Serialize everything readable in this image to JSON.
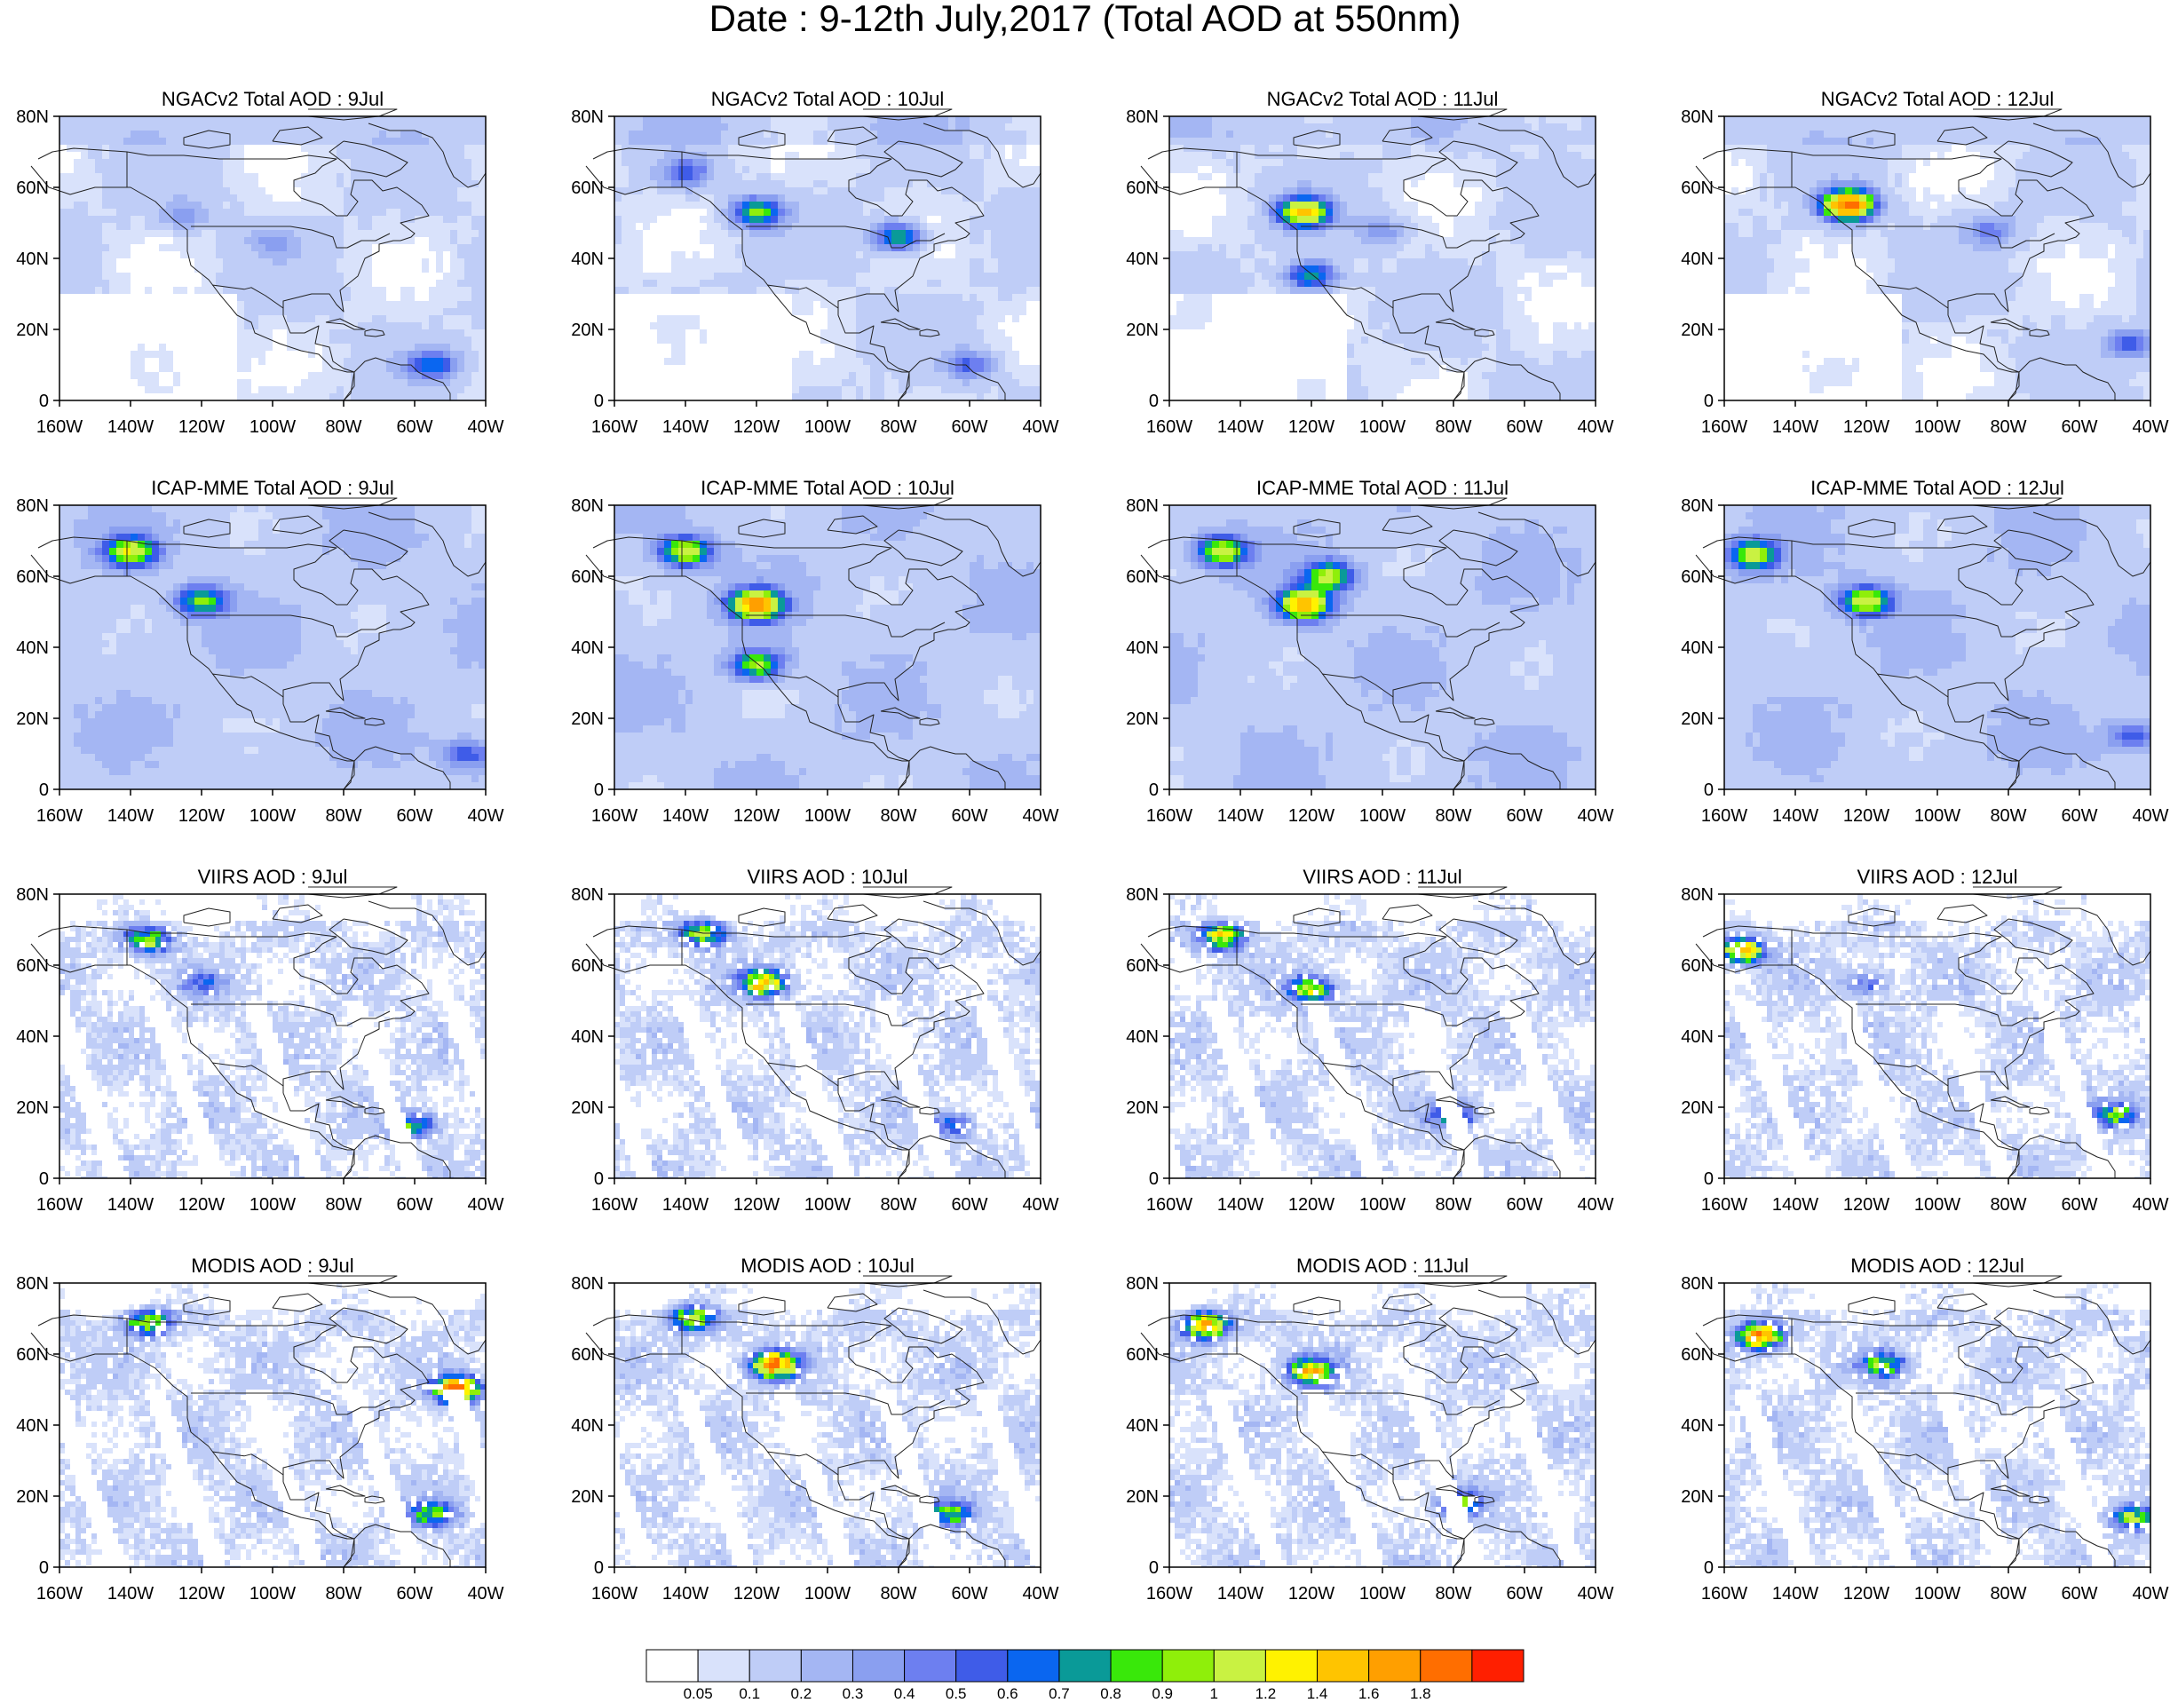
{
  "title": "Date : 9-12th July,2017 (Total AOD at 550nm)",
  "chart_data": {
    "type": "heatmap",
    "variable": "Total AOD at 550nm",
    "region": {
      "lon": [
        -160,
        -40
      ],
      "lat": [
        0,
        80
      ]
    },
    "x_ticks": [
      "160W",
      "140W",
      "120W",
      "100W",
      "80W",
      "60W",
      "40W"
    ],
    "y_ticks": [
      "0",
      "20N",
      "40N",
      "60N",
      "80N"
    ],
    "panels": [
      {
        "title": "NGACv2 Total AOD : 9Jul",
        "source": "NGACv2",
        "day": "9Jul",
        "plumes": [
          {
            "lon": -55,
            "lat": 10,
            "aod": 0.55
          },
          {
            "lon": -125,
            "lat": 52,
            "aod": 0.25
          },
          {
            "lon": -100,
            "lat": 45,
            "aod": 0.2
          }
        ]
      },
      {
        "title": "NGACv2 Total AOD : 10Jul",
        "source": "NGACv2",
        "day": "10Jul",
        "plumes": [
          {
            "lon": -120,
            "lat": 53,
            "aod": 0.8
          },
          {
            "lon": -80,
            "lat": 46,
            "aod": 0.75
          },
          {
            "lon": -140,
            "lat": 64,
            "aod": 0.45
          },
          {
            "lon": -60,
            "lat": 10,
            "aod": 0.4
          }
        ]
      },
      {
        "title": "NGACv2 Total AOD : 11Jul",
        "source": "NGACv2",
        "day": "11Jul",
        "plumes": [
          {
            "lon": -122,
            "lat": 53,
            "aod": 1.3
          },
          {
            "lon": -120,
            "lat": 35,
            "aod": 0.75
          },
          {
            "lon": -100,
            "lat": 48,
            "aod": 0.3
          }
        ]
      },
      {
        "title": "NGACv2 Total AOD : 12Jul",
        "source": "NGACv2",
        "day": "12Jul",
        "plumes": [
          {
            "lon": -125,
            "lat": 55,
            "aod": 1.8
          },
          {
            "lon": -45,
            "lat": 16,
            "aod": 0.45
          },
          {
            "lon": -85,
            "lat": 48,
            "aod": 0.35
          }
        ]
      },
      {
        "title": "ICAP-MME Total AOD : 9Jul",
        "source": "ICAP-MME",
        "day": "9Jul",
        "plumes": [
          {
            "lon": -140,
            "lat": 67,
            "aod": 1.0
          },
          {
            "lon": -120,
            "lat": 53,
            "aod": 0.75
          },
          {
            "lon": -45,
            "lat": 10,
            "aod": 0.45
          }
        ]
      },
      {
        "title": "ICAP-MME Total AOD : 10Jul",
        "source": "ICAP-MME",
        "day": "10Jul",
        "plumes": [
          {
            "lon": -140,
            "lat": 67,
            "aod": 1.0
          },
          {
            "lon": -120,
            "lat": 52,
            "aod": 1.5
          },
          {
            "lon": -120,
            "lat": 35,
            "aod": 0.9
          }
        ]
      },
      {
        "title": "ICAP-MME Total AOD : 11Jul",
        "source": "ICAP-MME",
        "day": "11Jul",
        "plumes": [
          {
            "lon": -145,
            "lat": 67,
            "aod": 1.0
          },
          {
            "lon": -122,
            "lat": 52,
            "aod": 1.4
          },
          {
            "lon": -115,
            "lat": 60,
            "aod": 0.9
          }
        ]
      },
      {
        "title": "ICAP-MME Total AOD : 12Jul",
        "source": "ICAP-MME",
        "day": "12Jul",
        "plumes": [
          {
            "lon": -152,
            "lat": 66,
            "aod": 0.9
          },
          {
            "lon": -120,
            "lat": 53,
            "aod": 1.0
          },
          {
            "lon": -45,
            "lat": 15,
            "aod": 0.45
          }
        ]
      },
      {
        "title": "VIIRS AOD : 9Jul",
        "source": "VIIRS",
        "day": "9Jul",
        "plumes": [
          {
            "lon": -135,
            "lat": 67,
            "aod": 0.9
          },
          {
            "lon": -60,
            "lat": 15,
            "aod": 0.7
          },
          {
            "lon": -120,
            "lat": 55,
            "aod": 0.4
          }
        ]
      },
      {
        "title": "VIIRS AOD : 10Jul",
        "source": "VIIRS",
        "day": "10Jul",
        "plumes": [
          {
            "lon": -135,
            "lat": 69,
            "aod": 1.0
          },
          {
            "lon": -118,
            "lat": 55,
            "aod": 1.3
          },
          {
            "lon": -65,
            "lat": 15,
            "aod": 0.5
          }
        ]
      },
      {
        "title": "VIIRS AOD : 11Jul",
        "source": "VIIRS",
        "day": "11Jul",
        "plumes": [
          {
            "lon": -145,
            "lat": 68,
            "aod": 1.1
          },
          {
            "lon": -120,
            "lat": 53,
            "aod": 1.0
          },
          {
            "lon": -80,
            "lat": 18,
            "aod": 0.7
          }
        ]
      },
      {
        "title": "VIIRS AOD : 12Jul",
        "source": "VIIRS",
        "day": "12Jul",
        "plumes": [
          {
            "lon": -155,
            "lat": 64,
            "aod": 1.3
          },
          {
            "lon": -50,
            "lat": 18,
            "aod": 0.7
          },
          {
            "lon": -120,
            "lat": 55,
            "aod": 0.4
          }
        ]
      },
      {
        "title": "MODIS AOD : 9Jul",
        "source": "MODIS",
        "day": "9Jul",
        "plumes": [
          {
            "lon": -135,
            "lat": 69,
            "aod": 1.0
          },
          {
            "lon": -48,
            "lat": 50,
            "aod": 1.8
          },
          {
            "lon": -55,
            "lat": 15,
            "aod": 0.8
          }
        ]
      },
      {
        "title": "MODIS AOD : 10Jul",
        "source": "MODIS",
        "day": "10Jul",
        "plumes": [
          {
            "lon": -138,
            "lat": 70,
            "aod": 1.0
          },
          {
            "lon": -115,
            "lat": 57,
            "aod": 1.6
          },
          {
            "lon": -65,
            "lat": 15,
            "aod": 0.7
          }
        ]
      },
      {
        "title": "MODIS AOD : 11Jul",
        "source": "MODIS",
        "day": "11Jul",
        "plumes": [
          {
            "lon": -150,
            "lat": 68,
            "aod": 1.4
          },
          {
            "lon": -120,
            "lat": 55,
            "aod": 1.3
          },
          {
            "lon": -78,
            "lat": 18,
            "aod": 0.7
          }
        ]
      },
      {
        "title": "MODIS AOD : 12Jul",
        "source": "MODIS",
        "day": "12Jul",
        "plumes": [
          {
            "lon": -150,
            "lat": 65,
            "aod": 1.6
          },
          {
            "lon": -115,
            "lat": 57,
            "aod": 0.8
          },
          {
            "lon": -45,
            "lat": 14,
            "aod": 0.8
          }
        ]
      }
    ],
    "colorbar": {
      "levels": [
        "0.05",
        "0.1",
        "0.2",
        "0.3",
        "0.4",
        "0.5",
        "0.6",
        "0.7",
        "0.8",
        "0.9",
        "1",
        "1.2",
        "1.4",
        "1.6",
        "1.8"
      ],
      "thresholds": [
        0.05,
        0.1,
        0.2,
        0.3,
        0.4,
        0.5,
        0.6,
        0.7,
        0.8,
        0.9,
        1,
        1.2,
        1.4,
        1.6,
        1.8
      ],
      "colors": [
        "#ffffff",
        "#d9e2fb",
        "#bfcdf7",
        "#a4b6f3",
        "#8a9ff0",
        "#6d7ff0",
        "#3f5ce8",
        "#0a66f0",
        "#0a9a98",
        "#39e80a",
        "#8fef0a",
        "#c9f242",
        "#fff200",
        "#ffc400",
        "#ff9f00",
        "#ff6e00",
        "#ff1f00"
      ]
    }
  }
}
